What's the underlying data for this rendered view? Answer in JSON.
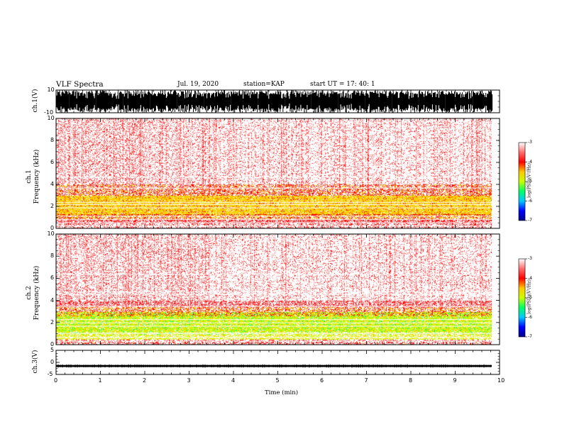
{
  "header": {
    "title": "VLF Spectra",
    "date": "Jul. 19, 2020",
    "station": "station=KAP",
    "start": "start UT =  17: 40: 1"
  },
  "colors": {
    "spectrum_scale": [
      "#000088",
      "#0000ff",
      "#00c8ff",
      "#00ff64",
      "#c8ff00",
      "#ffc800",
      "#ff0000",
      "#ff6e6e",
      "#ffffff"
    ],
    "waveform": "#000000",
    "background": "#ffffff"
  },
  "chart_data": [
    {
      "type": "line",
      "name": "ch1-waveform",
      "ylabel": "ch.1(V)",
      "ylim": [
        -10,
        10
      ],
      "yticks": [
        "10",
        "-10"
      ],
      "xlim": [
        0,
        10
      ],
      "description_values": {
        "typical_amplitude_range": [
          -10,
          10
        ],
        "saturated": true
      }
    },
    {
      "type": "heatmap",
      "name": "ch1-spectrogram",
      "ylabel": "ch.1\nFrequency (kHz)",
      "ylabel_lines": [
        "ch.1",
        "Frequency (kHz)"
      ],
      "ylim": [
        0,
        10
      ],
      "yticks": [
        "0",
        "2",
        "4",
        "6",
        "8",
        "10"
      ],
      "xlim": [
        0,
        9.85
      ],
      "colorbar": {
        "label": "log(PSD)(V²/Hz)",
        "range": [
          -7,
          -3
        ],
        "ticks": [
          "-3",
          "-4",
          "-5",
          "-6",
          "-7"
        ]
      },
      "bands": [
        {
          "freq_khz": [
            0.0,
            0.9
          ],
          "level": -3.4
        },
        {
          "freq_khz": [
            0.9,
            1.3
          ],
          "level": -3.8
        },
        {
          "freq_khz": [
            1.3,
            3.0
          ],
          "level": -4.1
        },
        {
          "freq_khz": [
            3.0,
            4.0
          ],
          "level": -3.8
        },
        {
          "freq_khz": [
            4.0,
            10.0
          ],
          "level": -3.3
        }
      ]
    },
    {
      "type": "heatmap",
      "name": "ch2-spectrogram",
      "ylabel": "ch.2\nFrequency (kHz)",
      "ylabel_lines": [
        "ch.2",
        "Frequency (kHz)"
      ],
      "ylim": [
        0,
        10
      ],
      "yticks": [
        "0",
        "2",
        "4",
        "6",
        "8",
        "10"
      ],
      "xlim": [
        0,
        9.85
      ],
      "colorbar": {
        "label": "log(PSD)(V²/Hz)",
        "range": [
          -7,
          -3
        ],
        "ticks": [
          "-3",
          "-4",
          "-5",
          "-6",
          "-7"
        ]
      },
      "bands": [
        {
          "freq_khz": [
            0.0,
            0.5
          ],
          "level": -3.6
        },
        {
          "freq_khz": [
            0.5,
            2.6
          ],
          "level": -4.5
        },
        {
          "freq_khz": [
            2.6,
            3.4
          ],
          "level": -3.9
        },
        {
          "freq_khz": [
            3.4,
            10.0
          ],
          "level": -3.3
        }
      ]
    },
    {
      "type": "line",
      "name": "ch3-waveform",
      "ylabel": "ch.3(V)",
      "ylim": [
        -5,
        5
      ],
      "yticks": [
        "5",
        "0",
        "-5"
      ],
      "xlim": [
        0,
        10
      ],
      "description_values": {
        "mean_v": -1.5,
        "amplitude_v": 0.4
      }
    }
  ],
  "xaxis": {
    "label": "Time (min)",
    "ticks": [
      "0",
      "1",
      "2",
      "3",
      "4",
      "5",
      "6",
      "7",
      "8",
      "9",
      "10"
    ],
    "range": [
      0,
      10
    ]
  }
}
